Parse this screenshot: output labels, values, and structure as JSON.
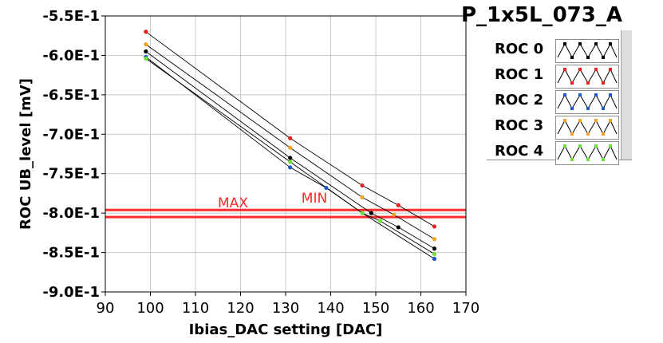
{
  "title": "P_1x5L_073_A",
  "chart_data": {
    "type": "line",
    "xlabel": "Ibias_DAC setting [DAC]",
    "ylabel": "ROC UB_level [mV]",
    "xlim": [
      90,
      170
    ],
    "ylim": [
      -0.9,
      -0.55
    ],
    "xticks": [
      90,
      100,
      110,
      120,
      130,
      140,
      150,
      160,
      170
    ],
    "yticks": [
      -0.55,
      -0.6,
      -0.65,
      -0.7,
      -0.75,
      -0.8,
      -0.85,
      -0.9
    ],
    "ytick_labels": [
      "-5.5E-1",
      "-6.0E-1",
      "-6.5E-1",
      "-7.0E-1",
      "-7.5E-1",
      "-8.0E-1",
      "-8.5E-1",
      "-9.0E-1"
    ],
    "xtick_labels": [
      "90",
      "100",
      "110",
      "120",
      "130",
      "140",
      "150",
      "160",
      "170"
    ],
    "grid": true,
    "legend_position": "right",
    "series": [
      {
        "name": "ROC 0",
        "color": "#000000",
        "x": [
          99,
          131,
          149,
          155,
          163
        ],
        "y": [
          -0.595,
          -0.73,
          -0.8,
          -0.818,
          -0.845
        ]
      },
      {
        "name": "ROC 1",
        "color": "#e8211d",
        "x": [
          99,
          131,
          147,
          155,
          163
        ],
        "y": [
          -0.57,
          -0.705,
          -0.765,
          -0.79,
          -0.817
        ]
      },
      {
        "name": "ROC 2",
        "color": "#1f58c8",
        "x": [
          99,
          131,
          139,
          147,
          163
        ],
        "y": [
          -0.602,
          -0.742,
          -0.768,
          -0.8,
          -0.858
        ]
      },
      {
        "name": "ROC 3",
        "color": "#f5a31f",
        "x": [
          99,
          131,
          147,
          154,
          163
        ],
        "y": [
          -0.586,
          -0.717,
          -0.78,
          -0.802,
          -0.833
        ]
      },
      {
        "name": "ROC 4",
        "color": "#6fe03a",
        "x": [
          99,
          131,
          147,
          151,
          163
        ],
        "y": [
          -0.604,
          -0.735,
          -0.8,
          -0.81,
          -0.852
        ]
      }
    ],
    "hlines": [
      {
        "label": "MAX",
        "y": -0.796,
        "color": "#ff2a2a"
      },
      {
        "label": "MIN",
        "y": -0.805,
        "color": "#ff2a2a"
      }
    ]
  }
}
